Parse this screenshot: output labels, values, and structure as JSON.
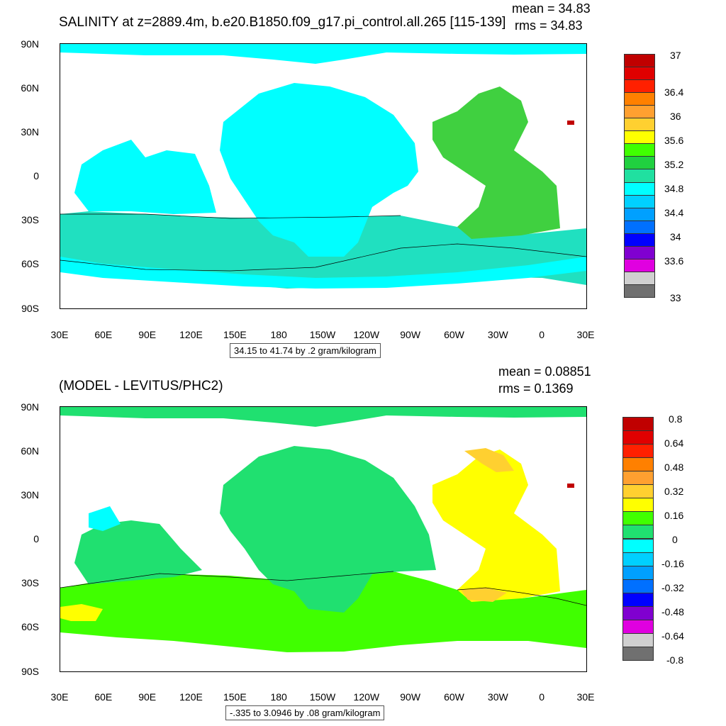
{
  "panel1": {
    "title": "SALINITY at z=2889.4m, b.e20.B1850.f09_g17.pi_control.all.265 [115-139]",
    "mean": "mean = 34.83",
    "rms": "rms = 34.83",
    "range_note": "34.15 to 41.74 by .2 gram/kilogram",
    "colorbar_labels": [
      "37",
      "36.4",
      "36",
      "35.6",
      "35.2",
      "34.8",
      "34.4",
      "34",
      "33.6",
      "33"
    ],
    "colorbar_colors": [
      "#c00000",
      "#e00000",
      "#ff2000",
      "#ff8000",
      "#ffa030",
      "#ffd030",
      "#ffff00",
      "#40ff00",
      "#20d040",
      "#20e0a0",
      "#00ffff",
      "#00d0ff",
      "#00a0ff",
      "#0070ff",
      "#0000ff",
      "#8000d0",
      "#e000e0",
      "#d0d0d0",
      "#707070"
    ]
  },
  "panel2": {
    "title": "(MODEL - LEVITUS/PHC2)",
    "mean": "mean = 0.08851",
    "rms": "rms = 0.1369",
    "range_note": "-.335 to 3.0946 by .08 gram/kilogram",
    "colorbar_labels": [
      "0.8",
      "0.64",
      "0.48",
      "0.32",
      "0.16",
      "0",
      "-0.16",
      "-0.32",
      "-0.48",
      "-0.64",
      "-0.8"
    ],
    "colorbar_colors": [
      "#c00000",
      "#e00000",
      "#ff2000",
      "#ff8000",
      "#ffa030",
      "#ffd030",
      "#ffff00",
      "#40ff00",
      "#20e070",
      "#00ffff",
      "#00d0ff",
      "#00a0ff",
      "#0070ff",
      "#0000ff",
      "#8000d0",
      "#e000e0",
      "#d0d0d0",
      "#707070"
    ]
  },
  "axes": {
    "lat_labels": [
      "90N",
      "60N",
      "30N",
      "0",
      "30S",
      "60S",
      "90S"
    ],
    "lon_labels": [
      "30E",
      "60E",
      "90E",
      "120E",
      "150E",
      "180",
      "150W",
      "120W",
      "90W",
      "60W",
      "30W",
      "0",
      "30E"
    ]
  },
  "colors": {
    "p1_ocean": "#00ffff",
    "p1_south": "#20e0c0",
    "p1_atlantic": "#40d040",
    "p2_ocean": "#20e070",
    "p2_south": "#40ff00",
    "p2_atlantic": "#ffff00",
    "p2_cyan": "#00ffff",
    "p2_orange": "#ffd030"
  }
}
